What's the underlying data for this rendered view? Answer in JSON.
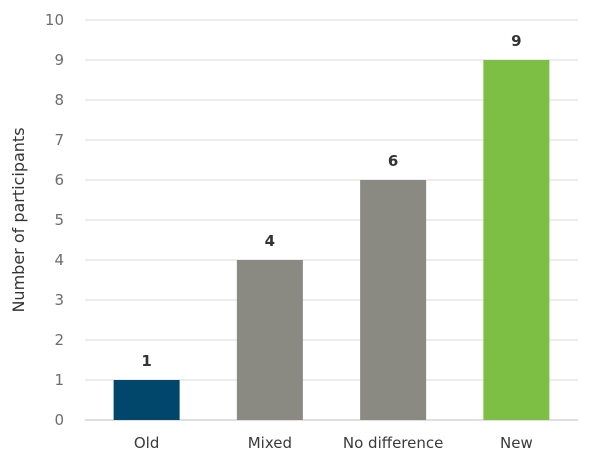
{
  "chart_data": {
    "type": "bar",
    "title": "",
    "xlabel": "",
    "ylabel": "Number of participants",
    "ylim": [
      0,
      10
    ],
    "yticks": [
      0,
      1,
      2,
      3,
      4,
      5,
      6,
      7,
      8,
      9,
      10
    ],
    "grid": true,
    "categories": [
      "Old",
      "Mixed",
      "No difference",
      "New"
    ],
    "values": [
      1,
      4,
      6,
      9
    ],
    "data_labels": [
      "1",
      "4",
      "6",
      "9"
    ],
    "colors": [
      "#00476b",
      "#8a8a82",
      "#8a8a82",
      "#7dbf44"
    ]
  }
}
